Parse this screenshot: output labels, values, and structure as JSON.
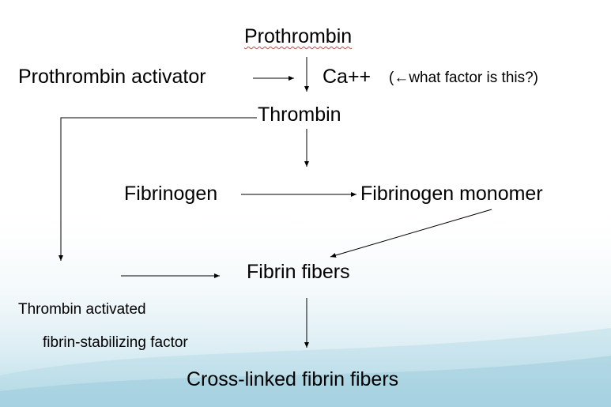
{
  "nodes": {
    "prothrombin": "Prothrombin",
    "prothrombin_activator": "Prothrombin activator",
    "ca": "Ca++",
    "ca_note": "(←what factor is this?)",
    "thrombin": "Thrombin",
    "fibrinogen": "Fibrinogen",
    "fibrinogen_monomer": "Fibrinogen monomer",
    "fibrin_fibers": "Fibrin fibers",
    "stabilizing_line1": "Thrombin activated",
    "stabilizing_line2": "fibrin-stabilizing factor",
    "cross_linked": "Cross-linked fibrin fibers"
  }
}
